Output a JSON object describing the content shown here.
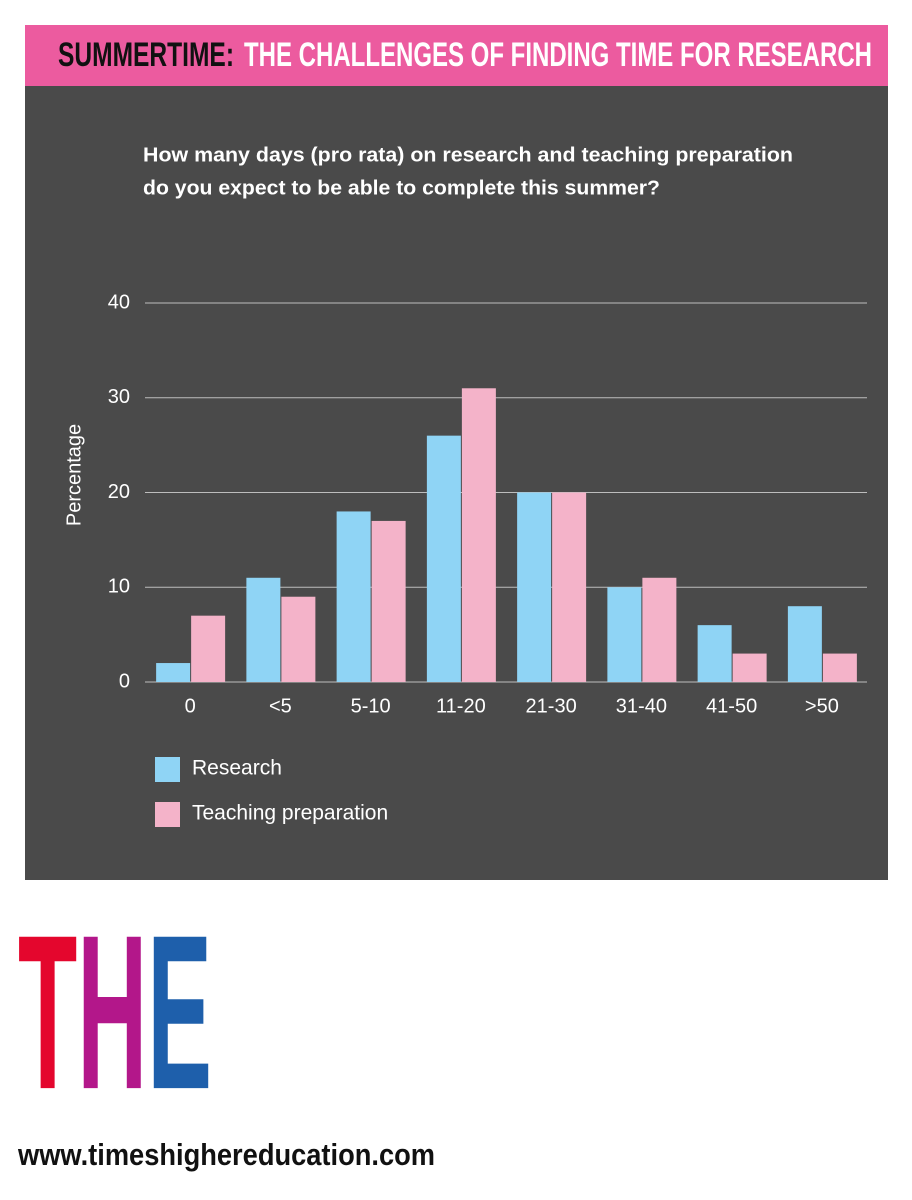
{
  "header": {
    "label": "SUMMERTIME:",
    "title": "THE CHALLENGES OF FINDING TIME FOR RESEARCH"
  },
  "chart_data": {
    "type": "bar",
    "title": [
      "How many days (pro rata) on research and teaching preparation",
      "do you expect to be able to complete this summer?"
    ],
    "y_label": "Percentage",
    "categories": [
      "0",
      "<5",
      "5-10",
      "11-20",
      "21-30",
      "31-40",
      "41-50",
      ">50"
    ],
    "series": [
      {
        "name": "Research",
        "color": "#8fd4f5",
        "values": [
          2,
          11,
          18,
          26,
          20,
          10,
          6,
          8
        ]
      },
      {
        "name": "Teaching preparation",
        "color": "#f4b3c9",
        "values": [
          7,
          9,
          17,
          31,
          20,
          11,
          3,
          3
        ]
      }
    ],
    "ylim": [
      0,
      40
    ],
    "yticks": [
      0,
      10,
      20,
      30,
      40
    ],
    "grid": true
  },
  "footer": {
    "logo": "THE",
    "url": "www.timeshighereducation.com"
  }
}
